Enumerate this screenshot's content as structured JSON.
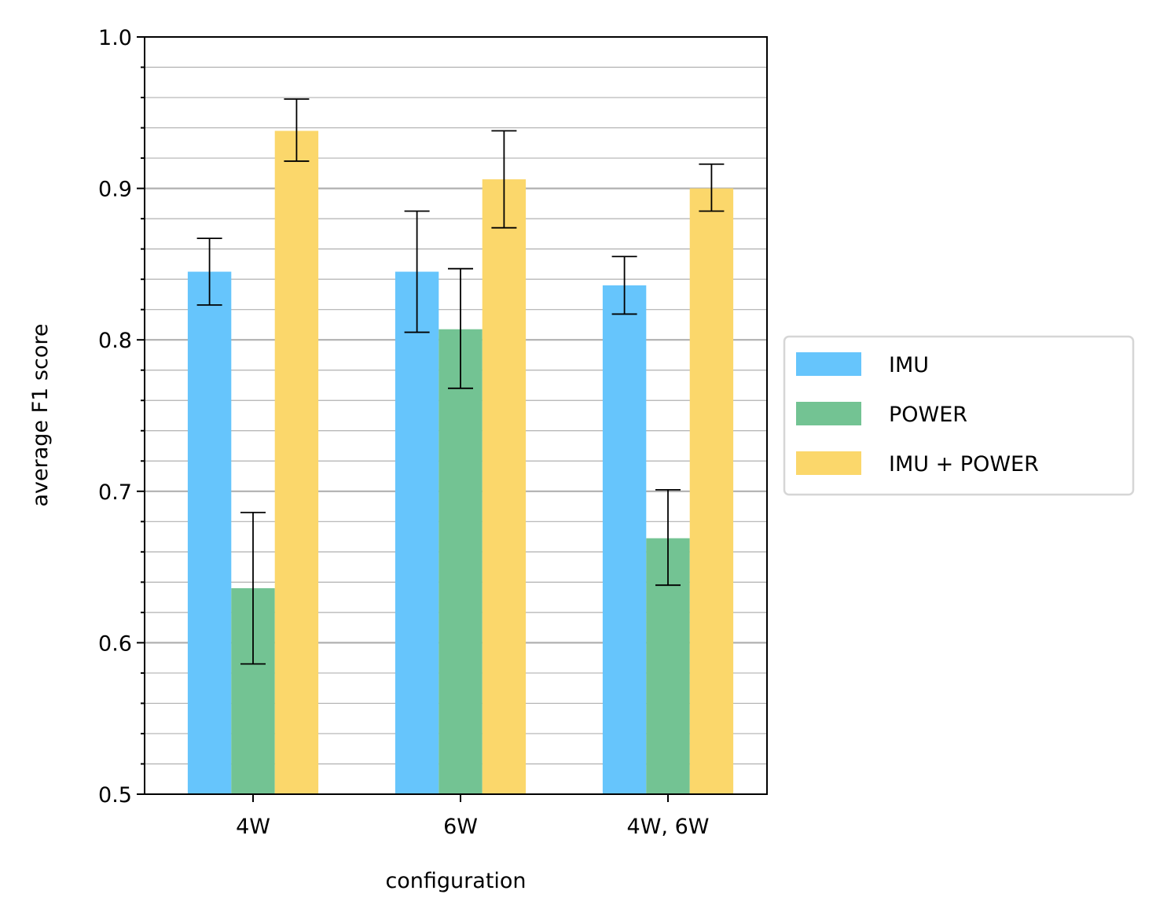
{
  "chart_data": {
    "type": "bar",
    "title": "",
    "xlabel": "configuration",
    "ylabel": "average F1 score",
    "ylim": [
      0.5,
      1.0
    ],
    "yticks": [
      "0.5",
      "0.6",
      "0.7",
      "0.8",
      "0.9",
      "1.0"
    ],
    "grid": "major and minor horizontal",
    "legend_position": "right, outside plot",
    "categories": [
      "4W",
      "6W",
      "4W, 6W"
    ],
    "series": [
      {
        "name": "IMU",
        "color": "#66c5fc",
        "values": [
          0.845,
          0.845,
          0.836
        ],
        "errors": [
          [
            0.823,
            0.867
          ],
          [
            0.805,
            0.885
          ],
          [
            0.817,
            0.855
          ]
        ]
      },
      {
        "name": "POWER",
        "color": "#73c393",
        "values": [
          0.636,
          0.807,
          0.669
        ],
        "errors": [
          [
            0.586,
            0.686
          ],
          [
            0.768,
            0.847
          ],
          [
            0.638,
            0.701
          ]
        ]
      },
      {
        "name": "IMU + POWER",
        "color": "#fbd76b",
        "values": [
          0.938,
          0.906,
          0.9
        ],
        "errors": [
          [
            0.918,
            0.959
          ],
          [
            0.874,
            0.938
          ],
          [
            0.885,
            0.916
          ]
        ]
      }
    ]
  }
}
